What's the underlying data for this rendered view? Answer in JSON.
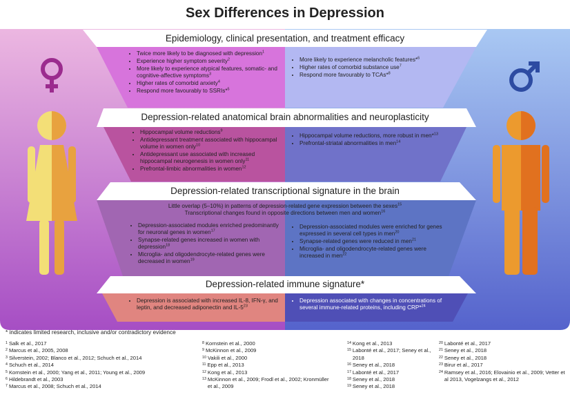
{
  "title": "Sex Differences in Depression",
  "sections": [
    {
      "heading": "Epidemiology, clinical presentation, and treatment efficacy",
      "intro": [],
      "female": [
        {
          "text": "Twice more likely to be diagnosed with depression",
          "sup": "1"
        },
        {
          "text": "Experience higher symptom severity",
          "sup": "2"
        },
        {
          "text": "More likely to experience atypical features, somatic- and cognitive-affective symptoms",
          "sup": "3"
        },
        {
          "text": "Higher rates of comorbid anxiety",
          "sup": "4"
        },
        {
          "text": "Respond more favourably to SSRIs*",
          "sup": "5"
        }
      ],
      "male": [
        {
          "text": "More likely to experience melancholic features*",
          "sup": "6"
        },
        {
          "text": "Higher rates of comorbid substance use",
          "sup": "7"
        },
        {
          "text": "Respond more favourably to TCAs*",
          "sup": "8"
        }
      ]
    },
    {
      "heading": "Depression-related anatomical brain abnormalities and neuroplasticity",
      "intro": [],
      "female": [
        {
          "text": "Hippocampal volume reductions",
          "sup": "9"
        },
        {
          "text": "Antidepressant treatment associated with hippocampal volume in women only",
          "sup": "10"
        },
        {
          "text": "Antidepressant use associated with increased hippocampal neurogenesis in women only",
          "sup": "11"
        },
        {
          "text": "Prefrontal-limbic abnormalities in women",
          "sup": "12"
        }
      ],
      "male": [
        {
          "text": "Hippocampal volume reductions, more robust in men*",
          "sup": "13"
        },
        {
          "text": "Prefrontal-striatal abnormalities in men",
          "sup": "14"
        }
      ]
    },
    {
      "heading": "Depression-related transcriptional signature in the brain",
      "intro": [
        {
          "text": "Little overlap (5–10%) in patterns of depression-related gene expression between the sexes",
          "sup": "15"
        },
        {
          "text": "Transcriptional changes found in opposite directions between men and women",
          "sup": "16"
        }
      ],
      "female": [
        {
          "text": "Depression-associated modules enriched predominantly for neuronal genes in women",
          "sup": "17"
        },
        {
          "text": "Synapse-related genes increased in women with depression",
          "sup": "18"
        },
        {
          "text": "Microglia- and oligodendrocyte-related genes were decreased in women",
          "sup": "19"
        }
      ],
      "male": [
        {
          "text": "Depression-associated modules were enriched for genes expressed in several cell types in men",
          "sup": "20"
        },
        {
          "text": "Synapse-related genes were reduced in men",
          "sup": "21"
        },
        {
          "text": "Microglia- and oligodendrocyte-related genes were increased in men",
          "sup": "22"
        }
      ]
    },
    {
      "heading": "Depression-related immune signature*",
      "intro": [],
      "female": [
        {
          "text": "Depression is associated with increased IL-8, IFN-γ, and leptin, and decreased adiponectin and IL-5",
          "sup": "23"
        }
      ],
      "male": [
        {
          "text": "Depression associated with changes in concentrations of several immune-related proteins, including CRP*",
          "sup": "24"
        }
      ]
    }
  ],
  "footnote": "* indicates limited research, inclusive and/or contradictory evidence",
  "references": [
    [
      {
        "num": "1",
        "text": "Salk et al., 2017"
      },
      {
        "num": "2",
        "text": "Marcus et al., 2005, 2008"
      },
      {
        "num": "3",
        "text": "Silverstein, 2002; Blanco et al., 2012; Schuch et al., 2014"
      },
      {
        "num": "4",
        "text": "Schuch et al., 2014"
      },
      {
        "num": "5",
        "text": "Kornstein et al., 2000; Yang et al., 2011; Young et al., 2009"
      },
      {
        "num": "6",
        "text": "Hildebrandt et al., 2003"
      },
      {
        "num": "7",
        "text": "Marcus et al., 2008; Schuch et al., 2014"
      }
    ],
    [
      {
        "num": "8",
        "text": "Kornstein et al., 2000"
      },
      {
        "num": "9",
        "text": "McKinnon et al., 2009"
      },
      {
        "num": "10",
        "text": "Vakili et al., 2000"
      },
      {
        "num": "11",
        "text": "Epp et al., 2013"
      },
      {
        "num": "12",
        "text": "Kong et al., 2013"
      },
      {
        "num": "13",
        "text": "McKinnon et al., 2009; Frodl et al., 2002; Kronmüller et al., 2009"
      }
    ],
    [
      {
        "num": "14",
        "text": "Kong et al., 2013"
      },
      {
        "num": "15",
        "text": "Labonté et al., 2017; Seney et al., 2018"
      },
      {
        "num": "16",
        "text": "Seney et al., 2018"
      },
      {
        "num": "17",
        "text": "Labonté et al., 2017"
      },
      {
        "num": "18",
        "text": "Seney et al., 2018"
      },
      {
        "num": "19",
        "text": "Seney et al., 2018"
      }
    ],
    [
      {
        "num": "20",
        "text": "Labonté et al., 2017"
      },
      {
        "num": "21",
        "text": "Seney et al., 2018"
      },
      {
        "num": "22",
        "text": "Seney et al., 2018"
      },
      {
        "num": "23",
        "text": "Birur et al., 2017"
      },
      {
        "num": "24",
        "text": "Ramsey et al., 2016; Elovainio et al., 2009; Vetter et al 2013, Vogelzangs et al., 2012"
      }
    ]
  ]
}
